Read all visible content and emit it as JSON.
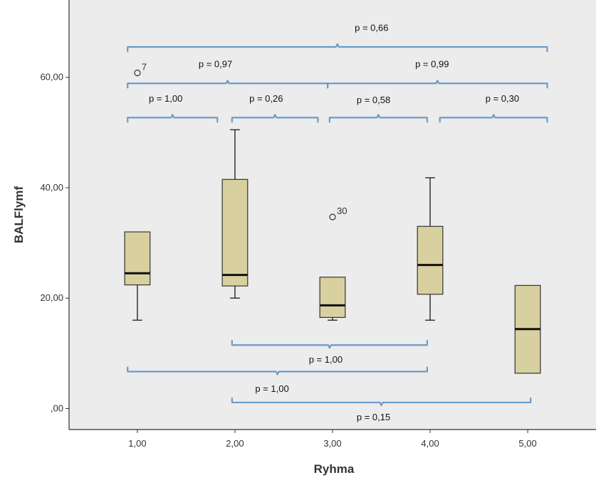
{
  "chart_data": {
    "type": "box",
    "xlabel": "Ryhma",
    "ylabel": "BALFlymf",
    "xlim": [
      0.3,
      5.7
    ],
    "ylim": [
      -3.8,
      74
    ],
    "yticks": [
      {
        "value": 0,
        "label": ",00"
      },
      {
        "value": 20,
        "label": "20,00"
      },
      {
        "value": 40,
        "label": "40,00"
      },
      {
        "value": 60,
        "label": "60,00"
      }
    ],
    "xticks": [
      {
        "value": 1,
        "label": "1,00"
      },
      {
        "value": 2,
        "label": "2,00"
      },
      {
        "value": 3,
        "label": "3,00"
      },
      {
        "value": 4,
        "label": "4,00"
      },
      {
        "value": 5,
        "label": "5,00"
      }
    ],
    "box_color": "#d9d0a0",
    "bracket_color": "#6b9bc8",
    "plot_bg": "#ececec",
    "boxes": [
      {
        "group": 1,
        "whisker_low": 16.0,
        "q1": 22.4,
        "median": 24.5,
        "q3": 32.0,
        "whisker_high": 32.0
      },
      {
        "group": 2,
        "whisker_low": 20.0,
        "q1": 22.2,
        "median": 24.2,
        "q3": 41.5,
        "whisker_high": 50.5
      },
      {
        "group": 3,
        "whisker_low": 16.0,
        "q1": 16.5,
        "median": 18.7,
        "q3": 23.8,
        "whisker_high": 23.8
      },
      {
        "group": 4,
        "whisker_low": 16.0,
        "q1": 20.7,
        "median": 26.0,
        "q3": 33.0,
        "whisker_high": 41.8
      },
      {
        "group": 5,
        "whisker_low": 6.4,
        "q1": 6.4,
        "median": 14.4,
        "q3": 22.3,
        "whisker_high": 22.3
      }
    ],
    "outliers": [
      {
        "x": 1,
        "y": 60.8,
        "label": "7"
      },
      {
        "x": 3,
        "y": 34.7,
        "label": "30"
      }
    ],
    "comparisons": [
      {
        "x1": 0.9,
        "x2": 5.2,
        "y": 65.5,
        "label": "p = 0,66",
        "dir": "up",
        "label_x": 3.4,
        "label_y": 68.4
      },
      {
        "x1": 0.9,
        "x2": 2.95,
        "y": 58.9,
        "label": "p = 0,97",
        "dir": "up",
        "label_x": 1.8,
        "label_y": 61.8
      },
      {
        "x1": 2.95,
        "x2": 5.2,
        "y": 58.9,
        "label": "p = 0,99",
        "dir": "up",
        "label_x": 4.02,
        "label_y": 61.8
      },
      {
        "x1": 0.9,
        "x2": 1.82,
        "y": 52.7,
        "label": "p = 1,00",
        "dir": "up",
        "label_x": 1.29,
        "label_y": 55.6
      },
      {
        "x1": 1.97,
        "x2": 2.85,
        "y": 52.7,
        "label": "p = 0,26",
        "dir": "up",
        "label_x": 2.32,
        "label_y": 55.6
      },
      {
        "x1": 2.97,
        "x2": 3.97,
        "y": 52.7,
        "label": "p = 0,58",
        "dir": "up",
        "label_x": 3.42,
        "label_y": 55.3
      },
      {
        "x1": 4.1,
        "x2": 5.2,
        "y": 52.7,
        "label": "p = 0,30",
        "dir": "up",
        "label_x": 4.74,
        "label_y": 55.6
      },
      {
        "x1": 1.97,
        "x2": 3.97,
        "y": 11.5,
        "label": "p = 1,00",
        "dir": "down",
        "label_x": 2.93,
        "label_y": 8.3
      },
      {
        "x1": 0.9,
        "x2": 3.97,
        "y": 6.7,
        "label": "p = 1,00",
        "dir": "down",
        "label_x": 2.38,
        "label_y": 3.0
      },
      {
        "x1": 1.97,
        "x2": 5.03,
        "y": 1.1,
        "label": "p = 0,15",
        "dir": "down",
        "label_x": 3.42,
        "label_y": -2.1
      }
    ]
  }
}
